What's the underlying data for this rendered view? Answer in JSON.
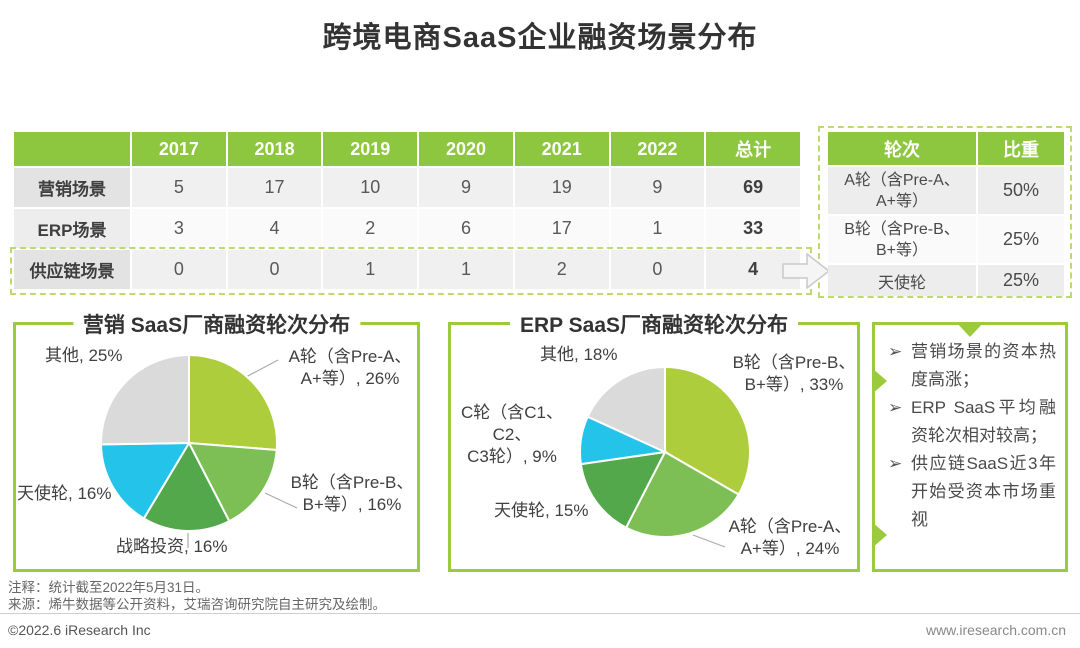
{
  "title": "跨境电商SaaS企业融资场景分布",
  "colors": {
    "header_green": "#8dc63f",
    "box_border_green": "#9bca3c",
    "dashed_green": "#bdda6e",
    "pie_lime": "#aecd3c",
    "pie_mid_green": "#7dbf55",
    "pie_dark_green": "#54a84c",
    "pie_cyan": "#24c3ea",
    "pie_gray": "#dadada"
  },
  "main_table": {
    "col_headers": [
      "2017",
      "2018",
      "2019",
      "2020",
      "2021",
      "2022",
      "总计"
    ],
    "rows": [
      {
        "label": "营销场景",
        "values": [
          "5",
          "17",
          "10",
          "9",
          "19",
          "9",
          "69"
        ]
      },
      {
        "label": "ERP场景",
        "values": [
          "3",
          "4",
          "2",
          "6",
          "17",
          "1",
          "33"
        ]
      },
      {
        "label": "供应链场景",
        "values": [
          "0",
          "0",
          "1",
          "1",
          "2",
          "0",
          "4"
        ]
      }
    ]
  },
  "side_table": {
    "col_headers": [
      "轮次",
      "比重"
    ],
    "rows": [
      {
        "round": "A轮（含Pre-A、\nA+等）",
        "share": "50%"
      },
      {
        "round": "B轮（含Pre-B、\nB+等）",
        "share": "25%"
      },
      {
        "round": "天使轮",
        "share": "25%"
      }
    ]
  },
  "chart_data": [
    {
      "type": "pie",
      "title": "营销 SaaS厂商融资轮次分布",
      "start_angle_deg": 0,
      "direction": "clockwise",
      "legend_position": "none",
      "slices": [
        {
          "label": "A轮（含Pre-A、A+等）",
          "value": 26,
          "color": "#aecd3c",
          "callout": "A轮（含Pre-A、\nA+等）, 26%"
        },
        {
          "label": "B轮（含Pre-B、B+等）",
          "value": 16,
          "color": "#7dbf55",
          "callout": "B轮（含Pre-B、\nB+等）, 16%"
        },
        {
          "label": "战略投资",
          "value": 16,
          "color": "#54a84c",
          "callout": "战略投资, 16%"
        },
        {
          "label": "天使轮",
          "value": 16,
          "color": "#24c3ea",
          "callout": "天使轮, 16%"
        },
        {
          "label": "其他",
          "value": 25,
          "color": "#dadada",
          "callout": "其他, 25%"
        }
      ]
    },
    {
      "type": "pie",
      "title": "ERP SaaS厂商融资轮次分布",
      "start_angle_deg": 0,
      "direction": "clockwise",
      "legend_position": "none",
      "slices": [
        {
          "label": "B轮（含Pre-B、B+等）",
          "value": 33,
          "color": "#aecd3c",
          "callout": "B轮（含Pre-B、\nB+等）, 33%"
        },
        {
          "label": "A轮（含Pre-A、A+等）",
          "value": 24,
          "color": "#7dbf55",
          "callout": "A轮（含Pre-A、\nA+等）, 24%"
        },
        {
          "label": "天使轮",
          "value": 15,
          "color": "#54a84c",
          "callout": "天使轮, 15%"
        },
        {
          "label": "C轮（含C1、C2、C3轮）",
          "value": 9,
          "color": "#24c3ea",
          "callout": "C轮（含C1、C2、\nC3轮）, 9%"
        },
        {
          "label": "其他",
          "value": 18,
          "color": "#dadada",
          "callout": "其他, 18%"
        }
      ]
    }
  ],
  "insights": {
    "marker": "➢",
    "items": [
      "营销场景的资本热度高涨；",
      "ERP SaaS平均融资轮次相对较高；",
      "供应链SaaS近3年开始受资本市场重视"
    ]
  },
  "footer": {
    "note1": "注释：统计截至2022年5月31日。",
    "note2": "来源：烯牛数据等公开资料，艾瑞咨询研究院自主研究及绘制。",
    "copyright": "©2022.6 iResearch Inc",
    "website": "www.iresearch.com.cn"
  }
}
